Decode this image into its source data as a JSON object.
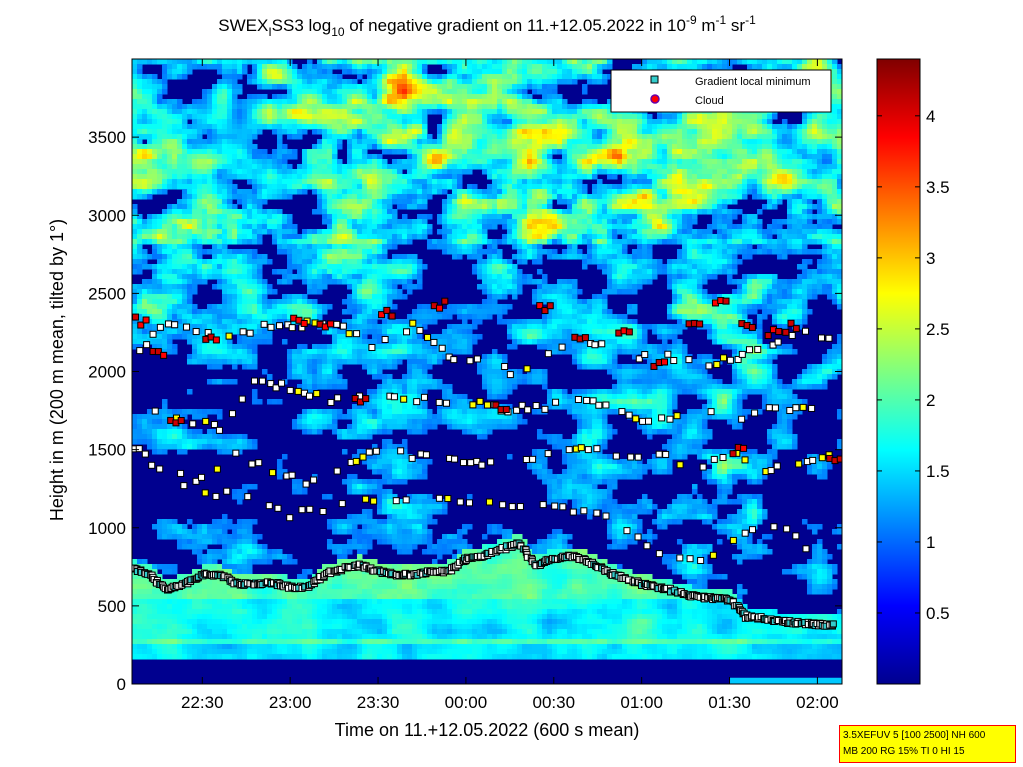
{
  "chart_data": {
    "type": "heatmap",
    "title": {
      "prefix": "SWEX",
      "sub1": "I",
      "mid": "SS3 log",
      "sub2": "10",
      "rest": " of negative gradient on 11.+12.05.2022 in 10",
      "sup1": "-9",
      "unit1": " m",
      "sup2": "-1",
      "unit2": " sr",
      "sup3": "-1"
    },
    "xlabel": "Time on 11.+12.05.2022 (600 s mean)",
    "ylabel": "Height in m (200 m mean, tilted by 1°)",
    "xlim_hours_after_22": [
      0.1,
      4.14
    ],
    "ylim": [
      0,
      4000
    ],
    "x_tick_labels": [
      "22:30",
      "23:00",
      "23:30",
      "00:00",
      "00:30",
      "01:00",
      "01:30",
      "02:00"
    ],
    "x_tick_hours_after_22": [
      0.5,
      1.0,
      1.5,
      2.0,
      2.5,
      3.0,
      3.5,
      4.0
    ],
    "y_ticks": [
      0,
      500,
      1000,
      1500,
      2000,
      2500,
      3000,
      3500
    ],
    "colorbar": {
      "range": [
        0,
        4.4
      ],
      "tick_values": [
        0.5,
        1,
        1.5,
        2,
        2.5,
        3,
        3.5,
        4
      ],
      "tick_labels": [
        "0.5",
        "1",
        "1.5",
        "2",
        "2.5",
        "3",
        "3.5",
        "4"
      ],
      "colormap": "jet"
    },
    "legend": {
      "placement": "top-right",
      "entries": [
        {
          "label": "Gradient local minimum",
          "marker": "square",
          "color": "#33cccc"
        },
        {
          "label": "Cloud",
          "marker": "circle",
          "color": "#ff0000",
          "edge": "#6a00a8"
        }
      ]
    },
    "series": [
      {
        "kind": "boundary_layer_top",
        "x": [
          0.1,
          0.2,
          0.3,
          0.4,
          0.5,
          0.6,
          0.7,
          0.8,
          0.9,
          1.0,
          1.1,
          1.2,
          1.3,
          1.4,
          1.5,
          1.6,
          1.7,
          1.8,
          1.9,
          2.0,
          2.1,
          2.2,
          2.3,
          2.4,
          2.5,
          2.6,
          2.7,
          2.8,
          2.9,
          3.0,
          3.1,
          3.2,
          3.3,
          3.4,
          3.5,
          3.6,
          3.7,
          3.8,
          3.9,
          4.0,
          4.1
        ],
        "y": [
          740,
          700,
          600,
          640,
          700,
          700,
          640,
          640,
          650,
          620,
          620,
          700,
          740,
          760,
          720,
          700,
          700,
          720,
          720,
          800,
          820,
          860,
          900,
          760,
          800,
          820,
          780,
          720,
          680,
          640,
          620,
          590,
          560,
          550,
          540,
          430,
          420,
          400,
          390,
          380,
          380
        ]
      },
      {
        "kind": "layer",
        "x": [
          0.1,
          0.3,
          0.5,
          0.7,
          0.9,
          1.1,
          1.3,
          1.5,
          1.7,
          1.9,
          2.1,
          2.3,
          2.5,
          2.7,
          2.9,
          3.1,
          3.3,
          3.5,
          3.7,
          3.9,
          4.1
        ],
        "y": [
          1520,
          1340,
          1300,
          1480,
          1360,
          1280,
          1400,
          1500,
          1450,
          1440,
          1420,
          1420,
          1470,
          1500,
          1450,
          1470,
          1380,
          1480,
          1350,
          1420,
          1450
        ]
      },
      {
        "kind": "layer",
        "x": [
          0.1,
          0.3,
          0.5,
          0.7,
          0.9,
          1.1,
          1.3,
          1.5,
          1.7,
          1.9,
          2.1,
          2.3,
          2.5,
          2.7,
          2.9,
          3.1,
          3.3,
          3.5,
          3.7,
          3.9,
          4.1
        ],
        "y": [
          2080,
          2320,
          2250,
          2240,
          2300,
          2300,
          2280,
          2150,
          2300,
          2080,
          2050,
          1980,
          2150,
          2200,
          2100,
          2100,
          2050,
          2070,
          2150,
          2280,
          2180
        ]
      },
      {
        "kind": "layer",
        "x": [
          0.2,
          0.4,
          0.6,
          0.8,
          1.0,
          1.2,
          1.4,
          1.6,
          1.8,
          2.0,
          2.2,
          2.4,
          2.6,
          2.8,
          3.0,
          3.2,
          3.4,
          3.6,
          3.8,
          4.0
        ],
        "y": [
          1780,
          1700,
          1640,
          1920,
          1900,
          1820,
          1820,
          1820,
          1820,
          1800,
          1760,
          1760,
          1800,
          1780,
          1700,
          1700,
          1750,
          1700,
          1780,
          1750
        ]
      },
      {
        "kind": "layer",
        "x": [
          0.4,
          0.7,
          1.0,
          1.3,
          1.6,
          1.9,
          2.2,
          2.5,
          2.8,
          3.1,
          3.4,
          3.7,
          4.0
        ],
        "y": [
          1250,
          1200,
          1080,
          1150,
          1180,
          1180,
          1140,
          1130,
          1080,
          850,
          800,
          1050,
          850
        ]
      }
    ],
    "clouds": {
      "x": [
        0.15,
        0.25,
        0.55,
        1.05,
        1.2,
        1.55,
        1.85,
        2.45,
        2.65,
        2.9,
        3.1,
        3.3,
        3.45,
        3.6,
        3.75,
        3.85,
        0.35,
        1.4,
        2.2,
        3.55,
        4.1
      ],
      "y": [
        2320,
        2100,
        2220,
        2320,
        2300,
        2380,
        2420,
        2400,
        2200,
        2250,
        2050,
        2300,
        2460,
        2300,
        2250,
        2280,
        1700,
        1800,
        1760,
        1500,
        1450
      ]
    }
  }
}
